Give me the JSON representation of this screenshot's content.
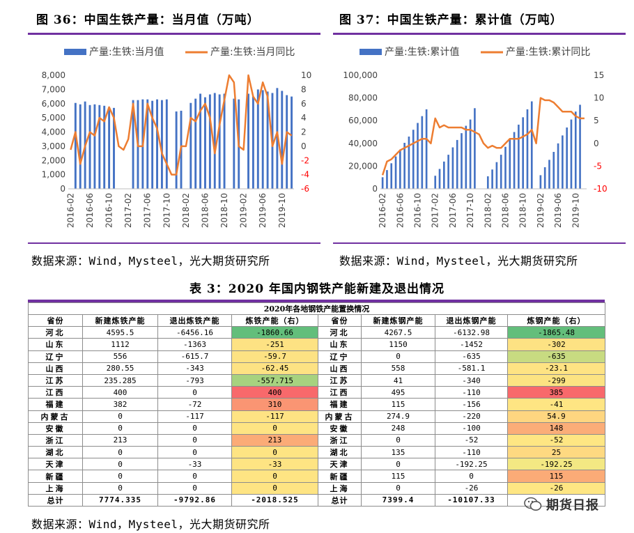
{
  "figure36": {
    "title": "图 36：中国生铁产量：当月值（万吨）"
  },
  "figure37": {
    "title": "图 37：中国生铁产量：累计值（万吨）"
  },
  "source_text": "数据来源：Wind，Mysteel，光大期货研究所",
  "table": {
    "title": "表 3：2020 年国内钢铁产能新建及退出情况",
    "caption": "2020年各地钢铁产能置换情况",
    "headers": [
      "省份",
      "新建炼铁产能",
      "退出炼铁产能",
      "炼铁产能（右）",
      "省份",
      "新建炼钢产能",
      "退出炼钢产能",
      "炼钢产能（右）"
    ],
    "rows": [
      [
        "河北",
        "4595.5",
        "-6456.16",
        "-1860.66",
        "河北",
        "4267.5",
        "-6132.98",
        "-1865.48"
      ],
      [
        "山东",
        "1112",
        "-1363",
        "-251",
        "山东",
        "1150",
        "-1452",
        "-302"
      ],
      [
        "辽宁",
        "556",
        "-615.7",
        "-59.7",
        "辽宁",
        "0",
        "-635",
        "-635"
      ],
      [
        "山西",
        "280.55",
        "-343",
        "-62.45",
        "山西",
        "558",
        "-581.1",
        "-23.1"
      ],
      [
        "江苏",
        "235.285",
        "-793",
        "-557.715",
        "江苏",
        "41",
        "-340",
        "-299"
      ],
      [
        "江西",
        "400",
        "0",
        "400",
        "江西",
        "495",
        "-110",
        "385"
      ],
      [
        "福建",
        "382",
        "-72",
        "310",
        "福建",
        "115",
        "-156",
        "-41"
      ],
      [
        "内蒙古",
        "0",
        "-117",
        "-117",
        "内蒙古",
        "274.9",
        "-220",
        "54.9"
      ],
      [
        "安徽",
        "0",
        "0",
        "0",
        "安徽",
        "248",
        "-100",
        "148"
      ],
      [
        "浙江",
        "213",
        "0",
        "213",
        "浙江",
        "0",
        "-52",
        "-52"
      ],
      [
        "湖北",
        "0",
        "0",
        "0",
        "湖北",
        "135",
        "-110",
        "25"
      ],
      [
        "天津",
        "0",
        "-33",
        "-33",
        "天津",
        "0",
        "-192.25",
        "-192.25"
      ],
      [
        "新疆",
        "0",
        "0",
        "0",
        "新疆",
        "115",
        "0",
        "115"
      ],
      [
        "上海",
        "0",
        "0",
        "0",
        "上海",
        "0",
        "-26",
        "-26"
      ]
    ],
    "totals": [
      "总计",
      "7774.335",
      "-9792.86",
      "-2018.525",
      "总计",
      "7399.4",
      "-10107.33",
      ""
    ],
    "heat_colors": {
      "iron": [
        "#63be7b",
        "#fde283",
        "#fde283",
        "#fde283",
        "#a7d27f",
        "#f8696b",
        "#fa9573",
        "#fee383",
        "#fee483",
        "#fbab77",
        "#fee483",
        "#fee483",
        "#fee483",
        "#fee483"
      ],
      "steel": [
        "#63be7b",
        "#fde283",
        "#c8db81",
        "#fee383",
        "#fce382",
        "#f8696b",
        "#fee583",
        "#fed680",
        "#fbad78",
        "#fee683",
        "#fed981",
        "#f3e883",
        "#fbab77",
        "#fee683"
      ]
    }
  },
  "watermark": {
    "text": "期货日报",
    "icon": "wechat-icon"
  },
  "chart_data": [
    {
      "type": "bar+line",
      "categories_ticks": [
        "2016-02",
        "2016-06",
        "2016-10",
        "2017-02",
        "2017-06",
        "2017-10",
        "2018-02",
        "2018-06",
        "2018-10",
        "2019-02",
        "2019-06",
        "2019-10"
      ],
      "months": [
        "2016-02",
        "2016-03",
        "2016-04",
        "2016-05",
        "2016-06",
        "2016-07",
        "2016-08",
        "2016-09",
        "2016-10",
        "2016-11",
        "2016-12",
        "2017-01",
        "2017-02",
        "2017-03",
        "2017-04",
        "2017-05",
        "2017-06",
        "2017-07",
        "2017-08",
        "2017-09",
        "2017-10",
        "2017-11",
        "2017-12",
        "2018-01",
        "2018-02",
        "2018-03",
        "2018-04",
        "2018-05",
        "2018-06",
        "2018-07",
        "2018-08",
        "2018-09",
        "2018-10",
        "2018-11",
        "2018-12",
        "2019-01",
        "2019-02",
        "2019-03",
        "2019-04",
        "2019-05",
        "2019-06",
        "2019-07",
        "2019-08",
        "2019-09",
        "2019-10",
        "2019-11",
        "2019-12"
      ],
      "series": [
        {
          "name": "产量:生铁:当月值",
          "axis": "left",
          "values": [
            0,
            6050,
            5950,
            6150,
            5900,
            5950,
            5900,
            5850,
            5750,
            5700,
            0,
            0,
            0,
            6250,
            6250,
            6300,
            6300,
            6200,
            6300,
            6250,
            6300,
            0,
            5450,
            5500,
            0,
            6050,
            6350,
            6700,
            6450,
            6650,
            6750,
            6650,
            6700,
            0,
            6350,
            6300,
            0,
            6700,
            6500,
            7000,
            6950,
            6850,
            6750,
            7100,
            6900,
            6600,
            6500
          ]
        },
        {
          "name": "产量:生铁:当月同比",
          "axis": "right",
          "values": [
            -0.5,
            2,
            -2.5,
            0,
            2,
            1.5,
            4,
            3.5,
            5.5,
            4,
            0,
            -0.5,
            1,
            6,
            0,
            0,
            6,
            4,
            2.5,
            -1,
            -2.5,
            -4,
            -4,
            0,
            0,
            4,
            3.5,
            5,
            6,
            4,
            -1,
            3,
            6.5,
            10,
            9,
            0,
            -0.5,
            10,
            7,
            6,
            9,
            7,
            0,
            2,
            -2.5,
            2,
            1.5
          ]
        }
      ],
      "ylim_left": [
        0,
        8000
      ],
      "yticks_left": [
        "8,000",
        "7,000",
        "6,000",
        "5,000",
        "4,000",
        "3,000",
        "2,000",
        "1,000",
        "0"
      ],
      "ylim_right": [
        -6,
        10
      ],
      "yticks_right": [
        "10",
        "8",
        "6",
        "4",
        "2",
        "0",
        "-2",
        "-4",
        "-6"
      ],
      "legend_placement": "top"
    },
    {
      "type": "bar+line",
      "categories_ticks": [
        "2016-02",
        "2016-06",
        "2016-10",
        "2017-02",
        "2017-06",
        "2017-10",
        "2018-02",
        "2018-06",
        "2018-10",
        "2019-02",
        "2019-06",
        "2019-10"
      ],
      "months": [
        "2016-02",
        "2016-03",
        "2016-04",
        "2016-05",
        "2016-06",
        "2016-07",
        "2016-08",
        "2016-09",
        "2016-10",
        "2016-11",
        "2016-12",
        "2017-01",
        "2017-02",
        "2017-03",
        "2017-04",
        "2017-05",
        "2017-06",
        "2017-07",
        "2017-08",
        "2017-09",
        "2017-10",
        "2017-11",
        "2017-12",
        "2018-01",
        "2018-02",
        "2018-03",
        "2018-04",
        "2018-05",
        "2018-06",
        "2018-07",
        "2018-08",
        "2018-09",
        "2018-10",
        "2018-11",
        "2018-12",
        "2019-01",
        "2019-02",
        "2019-03",
        "2019-04",
        "2019-05",
        "2019-06",
        "2019-07",
        "2019-08",
        "2019-09",
        "2019-10",
        "2019-11",
        "2019-12"
      ],
      "series": [
        {
          "name": "产量:生铁:累计值",
          "axis": "left",
          "values": [
            10200,
            16500,
            22500,
            28500,
            34500,
            40500,
            46000,
            52000,
            58000,
            64000,
            70000,
            0,
            11500,
            17500,
            24000,
            30000,
            36500,
            43000,
            49000,
            55500,
            61000,
            71000,
            0,
            0,
            11000,
            17000,
            23500,
            30000,
            37000,
            43500,
            50000,
            56500,
            63000,
            70000,
            77000,
            0,
            12000,
            19000,
            25500,
            32500,
            40000,
            47000,
            54000,
            61000,
            68000,
            74000,
            0
          ]
        },
        {
          "name": "产量:生铁:累计同比",
          "axis": "right",
          "values": [
            -7,
            -4,
            -3.5,
            -2.5,
            -1.5,
            -1,
            -0.5,
            0,
            0.5,
            1,
            1,
            0,
            5.5,
            3.5,
            4,
            3.5,
            3.5,
            3.5,
            3.5,
            3,
            3,
            2.5,
            2,
            0,
            -1,
            -0.5,
            -1,
            -1,
            0,
            1,
            1,
            1,
            1.5,
            2,
            3,
            0,
            10,
            9.5,
            9.5,
            9,
            8,
            7,
            7,
            7,
            6,
            5.5,
            5.5
          ]
        }
      ],
      "ylim_left": [
        0,
        100000
      ],
      "yticks_left": [
        "100,000",
        "80,000",
        "60,000",
        "40,000",
        "20,000",
        "0"
      ],
      "ylim_right": [
        -10,
        15
      ],
      "yticks_right": [
        "15",
        "10",
        "5",
        "0",
        "-5",
        "-10"
      ],
      "legend_placement": "top"
    }
  ]
}
